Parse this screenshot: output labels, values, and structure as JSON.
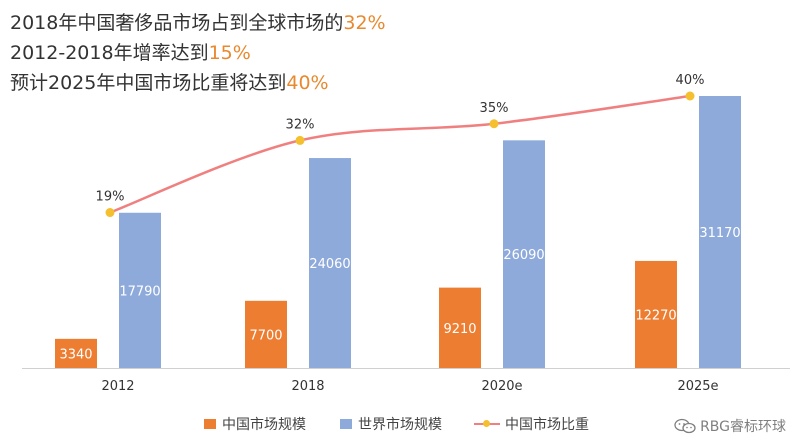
{
  "headlines": [
    {
      "text": "2018年中国奢侈品市场占到全球市场的",
      "highlight": "32%"
    },
    {
      "text": "2012-2018年增率达到",
      "highlight": "15%"
    },
    {
      "text": "预计2025年中国市场比重将达到",
      "highlight": "40%"
    }
  ],
  "watermark": "RBG睿标环球",
  "colors": {
    "china_bar": "#ed7d31",
    "world_bar": "#8eaadb",
    "share_line": "#f08080",
    "share_marker": "#f4c030",
    "highlight": "#e8892f"
  },
  "chart_data": {
    "type": "bar",
    "categories": [
      "2012",
      "2018",
      "2020e",
      "2025e"
    ],
    "series": [
      {
        "name": "中国市场规模",
        "type": "bar",
        "values": [
          3340,
          7700,
          9210,
          12270
        ]
      },
      {
        "name": "世界市场规模",
        "type": "bar",
        "values": [
          17790,
          24060,
          26090,
          31170
        ]
      },
      {
        "name": "中国市场比重",
        "type": "line",
        "values": [
          19,
          32,
          35,
          40
        ],
        "labels": [
          "19%",
          "32%",
          "35%",
          "40%"
        ]
      }
    ],
    "bar_ylim": [
      0,
      31170
    ],
    "line_ylim": [
      0,
      40
    ],
    "grid": false,
    "legend": "bottom"
  }
}
